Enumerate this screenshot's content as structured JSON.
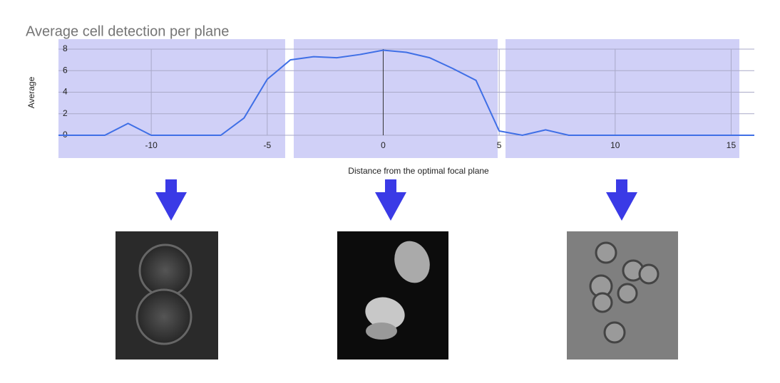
{
  "chart_data": {
    "type": "line",
    "title": "Average cell detection per plane",
    "x_label": "Distance from the optimal focal plane",
    "y_label": "Average",
    "x": [
      -14,
      -13,
      -12,
      -11,
      -10,
      -9,
      -8,
      -7,
      -6,
      -5,
      -4,
      -3,
      -2,
      -1,
      0,
      1,
      2,
      3,
      4,
      5,
      6,
      7,
      8,
      9,
      10,
      11,
      12,
      13,
      14,
      15,
      16
    ],
    "series": [
      {
        "name": "Average",
        "color": "#3f6fe6",
        "values": [
          0,
          0,
          0,
          1.1,
          0,
          0,
          0,
          0,
          1.6,
          5.2,
          7.0,
          7.3,
          7.2,
          7.5,
          7.9,
          7.7,
          7.2,
          6.2,
          5.1,
          0.4,
          0,
          0.5,
          0,
          0,
          0,
          0,
          0,
          0,
          0,
          0,
          0
        ]
      }
    ],
    "xlim": [
      -14,
      16
    ],
    "ylim": [
      0,
      8
    ],
    "xticks": [
      -10,
      -5,
      0,
      5,
      10,
      15
    ],
    "yticks": [
      0,
      2,
      4,
      6,
      8
    ],
    "grid": true
  }
}
